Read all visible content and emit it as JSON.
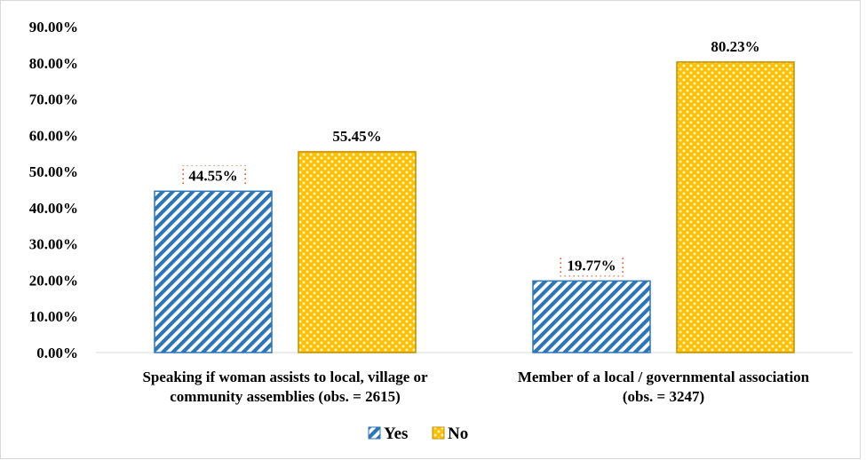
{
  "chart_data": {
    "type": "bar",
    "categories": [
      [
        "Speaking if woman assists to local, village or",
        "community assemblies (obs. = 2615)"
      ],
      [
        "Member of a local / governmental association",
        "(obs. = 3247)"
      ]
    ],
    "series": [
      {
        "name": "Yes",
        "values": [
          44.55,
          19.77
        ],
        "labels": [
          "44.55%",
          "19.77%"
        ],
        "color": "#2e75b6",
        "pattern": "diagonal-stripes"
      },
      {
        "name": "No",
        "values": [
          55.45,
          80.23
        ],
        "labels": [
          "55.45%",
          "80.23%"
        ],
        "color": "#ffc000",
        "pattern": "dots"
      }
    ],
    "y_ticks": [
      "0.00%",
      "10.00%",
      "20.00%",
      "30.00%",
      "40.00%",
      "50.00%",
      "60.00%",
      "70.00%",
      "80.00%",
      "90.00%"
    ],
    "ylim": [
      0,
      90
    ],
    "grid": false,
    "legend_position": "bottom",
    "title": "",
    "xlabel": "",
    "ylabel": ""
  }
}
